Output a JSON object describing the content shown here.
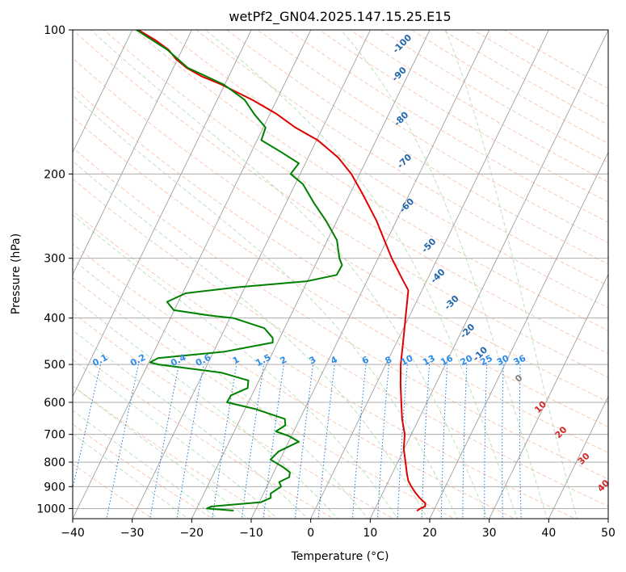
{
  "chart_data": {
    "type": "line",
    "title": "wetPf2_GN04.2025.147.15.25.E15",
    "xlabel": "Temperature (°C)",
    "ylabel": "Pressure (hPa)",
    "xlim": [
      -40,
      50
    ],
    "ylim": [
      1050,
      100
    ],
    "yscale": "log",
    "x_ticks": [
      "−40",
      "−30",
      "−20",
      "−10",
      "0",
      "10",
      "20",
      "30",
      "40",
      "50"
    ],
    "y_ticks": [
      "100",
      "200",
      "300",
      "400",
      "500",
      "600",
      "700",
      "800",
      "900",
      "1000"
    ],
    "grid": true,
    "series": [
      {
        "color": "#e00000",
        "points": [
          [
            1011,
            17.2
          ],
          [
            1000,
            17.6
          ],
          [
            990,
            18.2
          ],
          [
            975,
            18.0
          ],
          [
            950,
            16.6
          ],
          [
            925,
            15.4
          ],
          [
            900,
            14.3
          ],
          [
            875,
            13.3
          ],
          [
            850,
            12.6
          ],
          [
            800,
            11.3
          ],
          [
            750,
            9.9
          ],
          [
            700,
            8.9
          ],
          [
            650,
            7.2
          ],
          [
            600,
            5.7
          ],
          [
            550,
            4.1
          ],
          [
            500,
            2.5
          ],
          [
            450,
            1.1
          ],
          [
            400,
            -0.5
          ],
          [
            350,
            -2.3
          ],
          [
            330,
            -4.4
          ],
          [
            300,
            -7.7
          ],
          [
            250,
            -13.4
          ],
          [
            220,
            -17.9
          ],
          [
            200,
            -21.4
          ],
          [
            185,
            -24.9
          ],
          [
            170,
            -29.8
          ],
          [
            160,
            -34.6
          ],
          [
            150,
            -38.8
          ],
          [
            140,
            -44.1
          ],
          [
            130,
            -50.6
          ],
          [
            125,
            -54.6
          ],
          [
            120,
            -57.8
          ],
          [
            115,
            -60.3
          ],
          [
            110,
            -62.3
          ],
          [
            105,
            -65.3
          ],
          [
            100,
            -69.0
          ]
        ]
      },
      {
        "color": "#008000",
        "points": [
          [
            1010,
            -13.6
          ],
          [
            1000,
            -18.3
          ],
          [
            990,
            -17.7
          ],
          [
            970,
            -9.7
          ],
          [
            950,
            -8.4
          ],
          [
            930,
            -8.8
          ],
          [
            900,
            -7.6
          ],
          [
            880,
            -8.3
          ],
          [
            860,
            -7.0
          ],
          [
            840,
            -7.3
          ],
          [
            820,
            -8.8
          ],
          [
            790,
            -11.6
          ],
          [
            760,
            -10.9
          ],
          [
            725,
            -8.3
          ],
          [
            705,
            -10.5
          ],
          [
            690,
            -13.0
          ],
          [
            670,
            -11.9
          ],
          [
            650,
            -12.5
          ],
          [
            620,
            -18.2
          ],
          [
            600,
            -23.6
          ],
          [
            580,
            -23.5
          ],
          [
            560,
            -21.3
          ],
          [
            540,
            -21.8
          ],
          [
            520,
            -27.0
          ],
          [
            500,
            -38.3
          ],
          [
            495,
            -39.8
          ],
          [
            485,
            -38.8
          ],
          [
            470,
            -28.1
          ],
          [
            450,
            -20.8
          ],
          [
            440,
            -21.2
          ],
          [
            420,
            -23.4
          ],
          [
            400,
            -29.4
          ],
          [
            395,
            -33.6
          ],
          [
            385,
            -40.1
          ],
          [
            370,
            -41.9
          ],
          [
            355,
            -39.5
          ],
          [
            345,
            -31.4
          ],
          [
            335,
            -20.1
          ],
          [
            325,
            -15.6
          ],
          [
            310,
            -15.5
          ],
          [
            300,
            -16.5
          ],
          [
            275,
            -18.4
          ],
          [
            250,
            -21.9
          ],
          [
            230,
            -25.3
          ],
          [
            210,
            -28.7
          ],
          [
            200,
            -31.6
          ],
          [
            190,
            -31.1
          ],
          [
            180,
            -35.0
          ],
          [
            170,
            -39.3
          ],
          [
            160,
            -39.6
          ],
          [
            150,
            -42.6
          ],
          [
            140,
            -45.4
          ],
          [
            130,
            -50.2
          ],
          [
            120,
            -57.6
          ],
          [
            110,
            -62.5
          ],
          [
            100,
            -69.3
          ]
        ]
      }
    ],
    "mixing_ratio_labels": [
      "0.1",
      "0.2",
      "0.4",
      "0.6",
      "1",
      "1.5",
      "2",
      "3",
      "4",
      "6",
      "8",
      "10",
      "13",
      "16",
      "20",
      "25",
      "30",
      "36"
    ],
    "mixing_ratio_values": [
      0.1,
      0.2,
      0.4,
      0.6,
      1,
      1.5,
      2,
      3,
      4,
      6,
      8,
      10,
      13,
      16,
      20,
      25,
      30,
      36
    ],
    "moist_adiabat_labels": [
      "0",
      "10",
      "20",
      "30",
      "40"
    ],
    "moist_adiabat_label_positions": [
      [
        540,
        24
      ],
      [
        620,
        30
      ],
      [
        700,
        35.5
      ],
      [
        795,
        41.5
      ],
      [
        905,
        47
      ]
    ],
    "dry_adiabat_labels": [
      "-100",
      "-90",
      "-80",
      "-70",
      "-60",
      "-50",
      "-40",
      "-30",
      "-20",
      "-10"
    ],
    "dry_adiabat_label_positions": [
      [
        108,
        -23
      ],
      [
        125,
        -21
      ],
      [
        155,
        -17
      ],
      [
        190,
        -13
      ],
      [
        235,
        -9
      ],
      [
        285,
        -2
      ],
      [
        330,
        2
      ],
      [
        375,
        6.5
      ],
      [
        430,
        11.5
      ],
      [
        480,
        15.5
      ]
    ],
    "colors": {
      "temperature": "#e00000",
      "dewpoint": "#008000",
      "isotherm": "#a0a0a0",
      "isobar": "#a0a0a0",
      "dry_adiabat": "#f4a582",
      "moist_adiabat": "#a6d8a6",
      "mixing_ratio": "#1f77d4",
      "mixing_label": "#2b8be8",
      "dry_label": "#2166ac",
      "moist_label": "#d62728",
      "zero_label": "#808080",
      "tan_curve": "#d9bf9f"
    }
  }
}
